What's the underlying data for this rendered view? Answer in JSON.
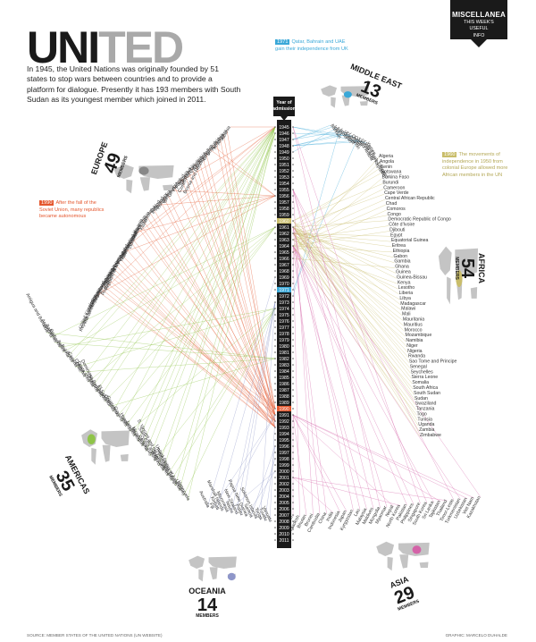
{
  "title": {
    "dark": "UNI",
    "light": "TED"
  },
  "intro": "In 1945, the United Nations was originally founded by 51 states to stop wars between countries and to provide a platform for dialogue. Presently it has 193 members with South Sudan as its youngest member which joined in 2011.",
  "badge": {
    "name": "MISCELLANEA",
    "sub1": "THIS WEEK'S",
    "sub2": "USEFUL",
    "sub3": "INFO"
  },
  "axis_title": [
    "Year of",
    "admission"
  ],
  "years": [
    "1945",
    "1946",
    "1947",
    "1948",
    "1949",
    "1950",
    "1951",
    "1952",
    "1953",
    "1954",
    "1955",
    "1956",
    "1957",
    "1958",
    "1959",
    "1960",
    "1961",
    "1962",
    "1963",
    "1964",
    "1965",
    "1966",
    "1967",
    "1968",
    "1969",
    "1970",
    "1971",
    "1972",
    "1973",
    "1974",
    "1975",
    "1976",
    "1977",
    "1978",
    "1979",
    "1980",
    "1981",
    "1982",
    "1983",
    "1984",
    "1985",
    "1986",
    "1987",
    "1988",
    "1989",
    "1990",
    "1991",
    "1992",
    "1993",
    "1994",
    "1995",
    "1996",
    "1997",
    "1998",
    "1999",
    "2000",
    "2001",
    "2002",
    "2003",
    "2004",
    "2005",
    "2006",
    "2007",
    "2008",
    "2009",
    "2010",
    "2011"
  ],
  "highlight": {
    "1971": "#3aa8d8",
    "1960": "#c9bd6a",
    "1990": "#e4572e"
  },
  "notes": {
    "middle_east": {
      "year": "1971",
      "text": "Qatar, Bahrain and UAE gain their independence from UK"
    },
    "africa": {
      "year": "1960",
      "text": "The movements of independence in 1950 from colonial Europe allowed more African members in the UN"
    },
    "europe": {
      "year": "1990",
      "text": "After the fall of the Soviet Union, many republics became autonomous"
    }
  },
  "regions": {
    "europe": {
      "name": "EUROPE",
      "count": "49",
      "members": "MEMBERS",
      "color": "#e4572e",
      "map_color": "#888888"
    },
    "middle_east": {
      "name": "MIDDLE EAST",
      "count": "13",
      "members": "MEMBERS",
      "color": "#3aa8d8"
    },
    "africa": {
      "name": "AFRICA",
      "count": "54",
      "members": "MEMBERS",
      "color": "#c9bd6a"
    },
    "americas": {
      "name": "AMERICAS",
      "count": "35",
      "members": "MEMBERS",
      "color": "#8fc449"
    },
    "oceania": {
      "name": "OCEANIA",
      "count": "14",
      "members": "MEMBERS",
      "color": "#8e96c9"
    },
    "asia": {
      "name": "ASIA",
      "count": "29",
      "members": "MEMBERS",
      "color": "#d463a8"
    }
  },
  "countries": {
    "europe": [
      "Albania",
      "Andorra",
      "Armenia",
      "Austria",
      "Belarus",
      "Belgium",
      "Bosnia and Herzegovina",
      "Bulgaria",
      "Croatia",
      "Cyprus",
      "Czech Republic",
      "Denmark",
      "Estonia",
      "Finland",
      "France",
      "Georgia",
      "Germany",
      "Greece",
      "Hungary",
      "Iceland",
      "Ireland",
      "Italy",
      "Kazakhstan",
      "Latvia",
      "Liechtenstein",
      "Lithuania",
      "Luxembourg",
      "Malta",
      "Monaco",
      "Montenegro",
      "Netherlands",
      "Norway",
      "Poland",
      "Portugal",
      "Republic of Moldova",
      "Romania",
      "Russian Federation",
      "San Marino",
      "Serbia",
      "Slovakia",
      "Slovenia",
      "Spain",
      "Sweden",
      "Switzerland",
      "The former Yugoslav",
      "Republic of Macedonia",
      "Turkey",
      "Ukraine",
      "United Kingdom"
    ],
    "middle_east": [
      "Bahrain",
      "Iran",
      "Iraq",
      "Israel",
      "Jordan",
      "Kuwait",
      "Lebanon",
      "Oman",
      "Qatar",
      "Saudi Arabia",
      "Syrian Arab Republic",
      "United Arab Emirates",
      "Yemen"
    ],
    "africa": [
      "Algeria",
      "Angola",
      "Benin",
      "Botswana",
      "Burkina Faso",
      "Burundi",
      "Cameroon",
      "Cape Verde",
      "Central African Republic",
      "Chad",
      "Comoros",
      "Congo",
      "Democratic Republic of Congo",
      "Côte d'Ivoire",
      "Djibouti",
      "Egypt",
      "Equatorial Guinea",
      "Eritrea",
      "Ethiopia",
      "Gabon",
      "Gambia",
      "Ghana",
      "Guinea",
      "Guinea-Bissau",
      "Kenya",
      "Lesotho",
      "Liberia",
      "Libya",
      "Madagascar",
      "Malawi",
      "Mali",
      "Mauritania",
      "Mauritius",
      "Morocco",
      "Mozambique",
      "Namibia",
      "Niger",
      "Nigeria",
      "Rwanda",
      "Sao Tome and Principe",
      "Senegal",
      "Seychelles",
      "Sierra Leone",
      "Somalia",
      "South Africa",
      "South Sudan",
      "Sudan",
      "Swaziland",
      "Tanzania",
      "Togo",
      "Tunisia",
      "Uganda",
      "Zambia",
      "Zimbabwe"
    ],
    "americas": [
      "Antigua and Barbuda",
      "Argentina",
      "Bahamas",
      "Barbados",
      "Belize",
      "Bolivia",
      "Brazil",
      "Canada",
      "Chile",
      "Colombia",
      "Costa Rica",
      "Cuba",
      "Dominica",
      "Dominican Republic",
      "Ecuador",
      "El Salvador",
      "Grenada",
      "Guatemala",
      "Guyana",
      "Haiti",
      "Honduras",
      "Jamaica",
      "Mexico",
      "Nicaragua",
      "Panama",
      "Paraguay",
      "Peru",
      "Saint Kitts and Nevis",
      "Saint Lucia",
      "S. Vincent and the Grenadines",
      "Suriname",
      "Trinidad and Tobago",
      "United States of America",
      "Uruguay",
      "Venezuela"
    ],
    "oceania": [
      "Australia",
      "Fiji",
      "Kiribati",
      "Marshall Islands",
      "Micronesia",
      "Nauru",
      "New Zealand",
      "Palau",
      "Papua New Guinea",
      "Samoa",
      "Solomon Islands",
      "Tonga",
      "Tuvalu",
      "Vanuatu"
    ],
    "asia": [
      "Afghanistan",
      "Bangladesh",
      "Bhutan",
      "Brunei",
      "Cambodia",
      "China",
      "India",
      "Indonesia",
      "Japan",
      "Kyrgyzstan",
      "Lao",
      "Malaysia",
      "Maldives",
      "Mongolia",
      "Myanmar",
      "Nepal",
      "North Korea",
      "Pakistan",
      "Philippines",
      "Singapore",
      "South Korea",
      "Sri Lanka",
      "Tajikistan",
      "Thailand",
      "Timor-Leste",
      "Turkmenistan",
      "Uzbekistan",
      "Viet Nam",
      "Kazakhstan"
    ]
  },
  "footer": {
    "source": "SOURCE: MEMBER STATES OF THE UNITED NATIONS (UN WEBSITE)",
    "credit": "GRAPHIC: MARCELO DUHALDE"
  }
}
